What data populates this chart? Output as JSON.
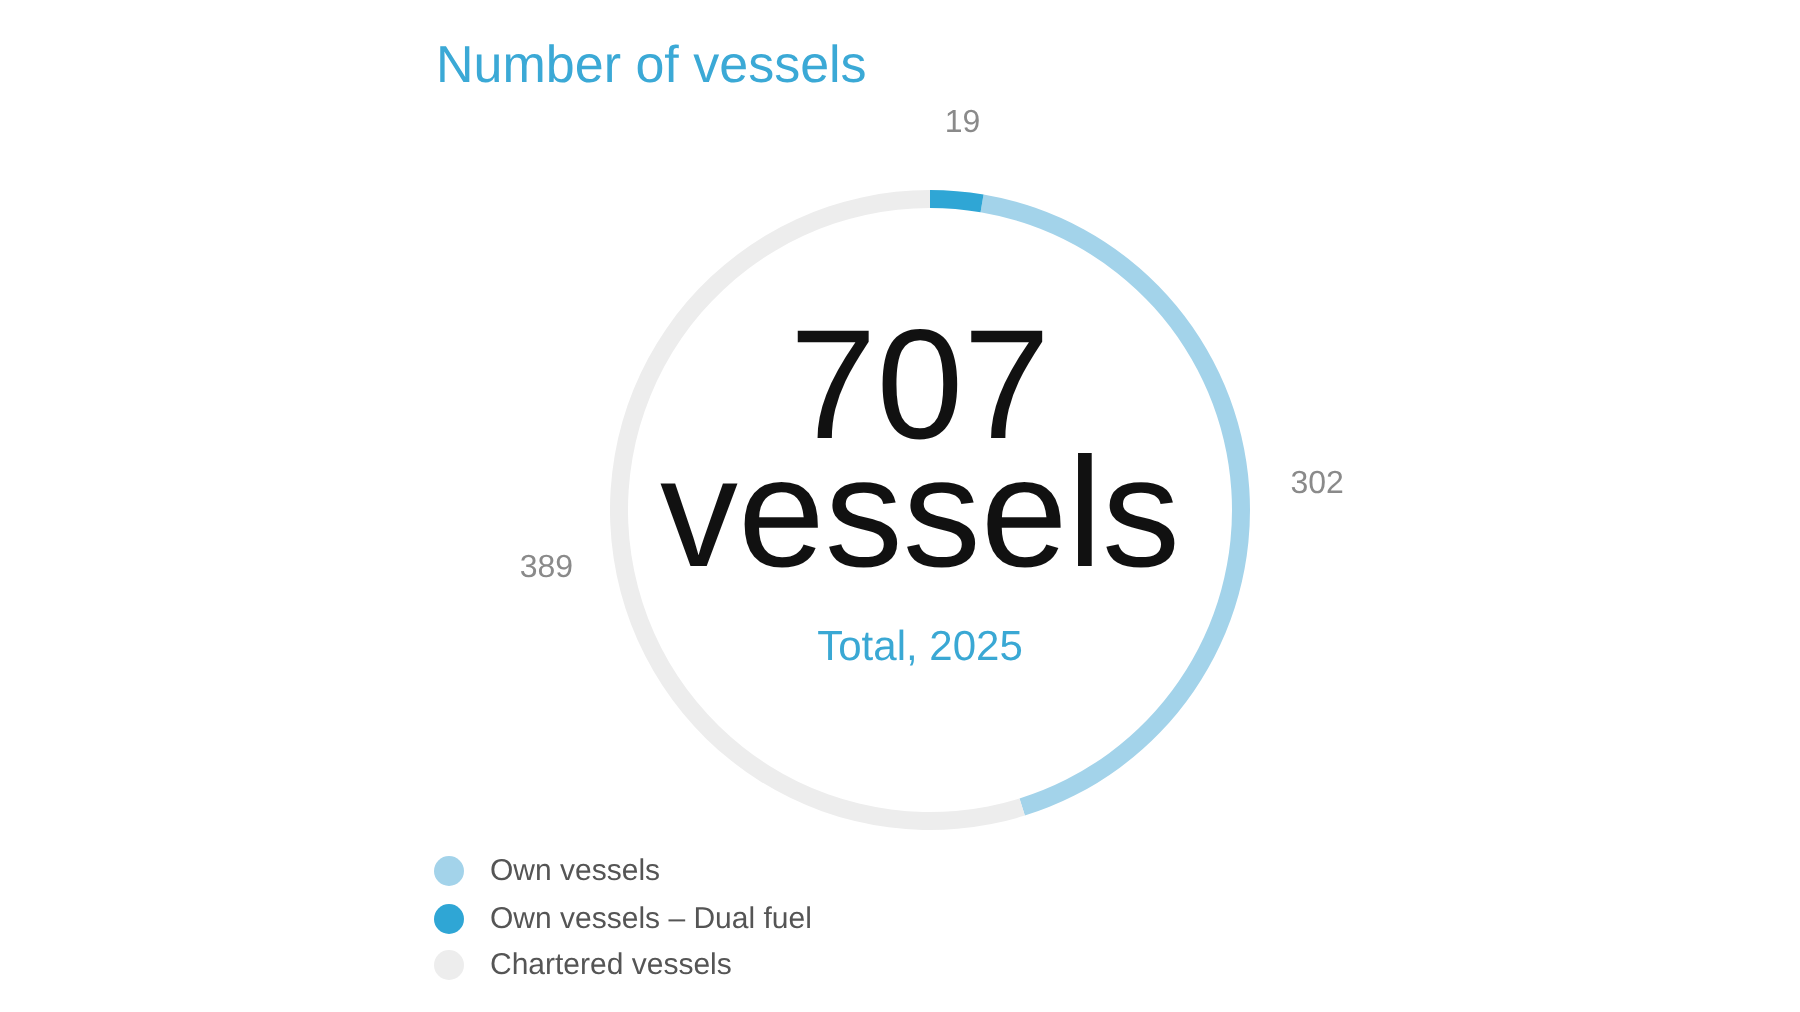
{
  "chart_data": {
    "type": "donut",
    "title": "Number of vessels",
    "categories": [
      "Own vessels",
      "Own vessels – Dual fuel",
      "Chartered vessels"
    ],
    "values": [
      302,
      19,
      389
    ],
    "colors": [
      "#a3d3ea",
      "#2fa6d5",
      "#ededed"
    ],
    "data_labels": true,
    "legend": "bottom left",
    "annotations": [
      "707 vessels",
      "Total, 2025"
    ]
  }
}
